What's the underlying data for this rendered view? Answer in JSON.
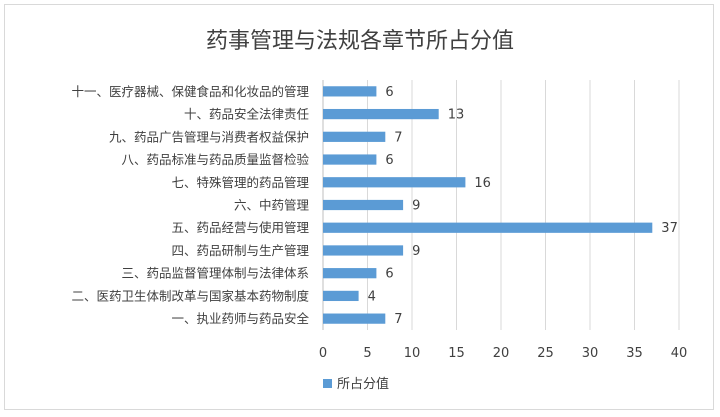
{
  "chart_data": {
    "type": "bar",
    "orientation": "horizontal",
    "title": "药事管理与法规各章节所占分值",
    "categories": [
      "十一、医疗器械、保健食品和化妆品的管理",
      "十、药品安全法律责任",
      "九、药品广告管理与消费者权益保护",
      "八、药品标准与药品质量监督检验",
      "七、特殊管理的药品管理",
      "六、中药管理",
      "五、药品经营与使用管理",
      "四、药品研制与生产管理",
      "三、药品监督管理体制与法律体系",
      "二、医药卫生体制改革与国家基本药物制度",
      "一、执业药师与药品安全"
    ],
    "series": [
      {
        "name": "所占分值",
        "values": [
          6,
          13,
          7,
          6,
          16,
          9,
          37,
          9,
          6,
          4,
          7
        ],
        "color": "#5b9bd5"
      }
    ],
    "xlim": [
      0,
      40
    ],
    "x_ticks": [
      0,
      5,
      10,
      15,
      20,
      25,
      30,
      35,
      40
    ],
    "xlabel": "",
    "ylabel": "",
    "grid": "vertical",
    "legend_position": "bottom",
    "data_labels": true
  }
}
